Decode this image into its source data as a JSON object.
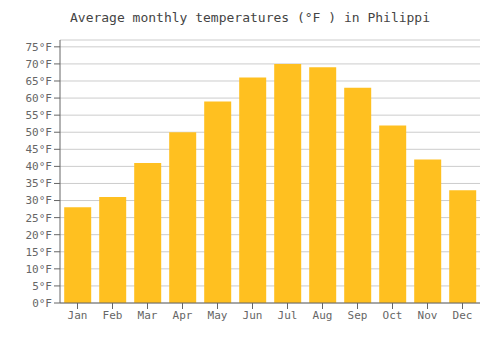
{
  "chart_data": {
    "type": "bar",
    "title": "Average monthly temperatures (°F ) in Philippi",
    "categories": [
      "Jan",
      "Feb",
      "Mar",
      "Apr",
      "May",
      "Jun",
      "Jul",
      "Aug",
      "Sep",
      "Oct",
      "Nov",
      "Dec"
    ],
    "values": [
      28,
      31,
      41,
      50,
      59,
      66,
      70,
      69,
      63,
      52,
      42,
      33
    ],
    "color": "#FFC020",
    "ylim": [
      0,
      77
    ],
    "yticks": [
      {
        "value": 0,
        "label": "0°F"
      },
      {
        "value": 5,
        "label": "5°F"
      },
      {
        "value": 10,
        "label": "10°F"
      },
      {
        "value": 15,
        "label": "15°F"
      },
      {
        "value": 20,
        "label": "20°F"
      },
      {
        "value": 25,
        "label": "25°F"
      },
      {
        "value": 30,
        "label": "30°F"
      },
      {
        "value": 35,
        "label": "35°F"
      },
      {
        "value": 40,
        "label": "40°F"
      },
      {
        "value": 45,
        "label": "45°F"
      },
      {
        "value": 50,
        "label": "50°F"
      },
      {
        "value": 55,
        "label": "55°F"
      },
      {
        "value": 60,
        "label": "60°F"
      },
      {
        "value": 65,
        "label": "65°F"
      },
      {
        "value": 70,
        "label": "70°F"
      },
      {
        "value": 75,
        "label": "75°F"
      }
    ],
    "grid": true
  }
}
